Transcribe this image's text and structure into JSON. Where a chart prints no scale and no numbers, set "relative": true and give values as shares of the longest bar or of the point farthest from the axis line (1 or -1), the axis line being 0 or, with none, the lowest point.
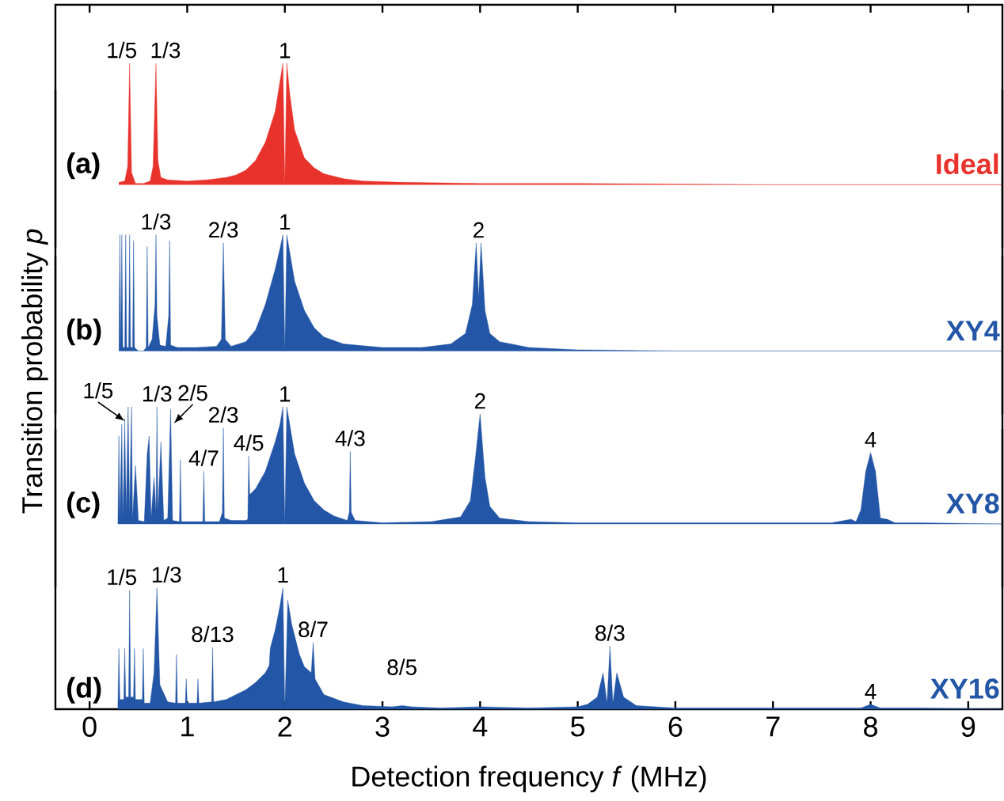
{
  "chart_data": [
    {
      "type": "area",
      "relative": true,
      "xlim": [
        -0.35,
        9.35
      ],
      "tick_labels": false,
      "series": [
        {
          "name": "Ideal",
          "color": "#e8322c",
          "x": [
            0.3,
            0.36,
            0.39,
            0.41,
            0.43,
            0.47,
            0.55,
            0.62,
            0.65,
            0.68,
            0.7,
            0.73,
            0.8,
            1.0,
            1.2,
            1.4,
            1.5,
            1.6,
            1.7,
            1.8,
            1.9,
            1.95,
            1.98,
            2.0,
            2.02,
            2.05,
            2.1,
            2.2,
            2.3,
            2.4,
            2.6,
            2.8,
            3.2,
            4.0,
            5.0,
            7.0,
            9.35
          ],
          "values": [
            0.02,
            0.03,
            0.15,
            1.0,
            0.1,
            0.01,
            0.01,
            0.03,
            0.15,
            1.0,
            0.2,
            0.06,
            0.04,
            0.03,
            0.04,
            0.06,
            0.08,
            0.12,
            0.2,
            0.35,
            0.6,
            0.85,
            1.0,
            0,
            1.0,
            0.75,
            0.45,
            0.22,
            0.14,
            0.09,
            0.05,
            0.03,
            0.02,
            0.01,
            0.01,
            0,
            0
          ]
        }
      ],
      "annotations": [
        "(a)",
        {
          "text": "1/5",
          "x": 0.41,
          "y": 1.0
        },
        {
          "text": "1/3",
          "x": 0.68,
          "y": 1.0
        },
        {
          "text": "1",
          "x": 2.0,
          "y": 1.0
        }
      ]
    },
    {
      "type": "area",
      "relative": true,
      "xlim": [
        -0.35,
        9.35
      ],
      "tick_labels": false,
      "series": [
        {
          "name": "XY4",
          "color": "#2356a6",
          "x": [
            0.3,
            0.31,
            0.32,
            0.33,
            0.34,
            0.36,
            0.37,
            0.38,
            0.4,
            0.41,
            0.42,
            0.44,
            0.45,
            0.46,
            0.5,
            0.55,
            0.58,
            0.59,
            0.6,
            0.64,
            0.67,
            0.68,
            0.69,
            0.72,
            0.78,
            0.81,
            0.82,
            0.83,
            0.9,
            1.1,
            1.3,
            1.35,
            1.37,
            1.39,
            1.45,
            1.6,
            1.7,
            1.8,
            1.9,
            1.95,
            1.98,
            2.0,
            2.02,
            2.05,
            2.1,
            2.2,
            2.3,
            2.4,
            2.6,
            3.0,
            3.4,
            3.7,
            3.85,
            3.92,
            3.96,
            3.985,
            4.01,
            4.05,
            4.1,
            4.2,
            4.5,
            5.0,
            6.0,
            9.35
          ],
          "values": [
            0.03,
            1.0,
            0.03,
            1.0,
            0.03,
            0.03,
            1.0,
            0.03,
            0.03,
            1.0,
            0.03,
            0.03,
            0.95,
            0.03,
            0,
            0,
            0.03,
            0.9,
            0.03,
            0.1,
            0.4,
            1.0,
            0.3,
            0.05,
            0.04,
            0.3,
            0.95,
            0.05,
            0.03,
            0.03,
            0.04,
            0.1,
            0.93,
            0.1,
            0.04,
            0.08,
            0.18,
            0.4,
            0.7,
            0.88,
            1.0,
            0,
            1.0,
            0.85,
            0.6,
            0.35,
            0.2,
            0.12,
            0.06,
            0.03,
            0.03,
            0.06,
            0.15,
            0.4,
            0.93,
            0.46,
            0.93,
            0.35,
            0.15,
            0.08,
            0.03,
            0.01,
            0,
            0
          ]
        }
      ],
      "annotations": [
        "(b)",
        {
          "text": "1/3",
          "x": 0.68,
          "y": 1.0
        },
        {
          "text": "2/3",
          "x": 1.37,
          "y": 0.93
        },
        {
          "text": "1",
          "x": 2.0,
          "y": 1.0
        },
        {
          "text": "2",
          "x": 3.985,
          "y": 0.93
        }
      ]
    },
    {
      "type": "area",
      "relative": true,
      "xlim": [
        -0.35,
        9.35
      ],
      "tick_labels": false,
      "series": [
        {
          "name": "XY8",
          "color": "#2356a6",
          "x": [
            0.29,
            0.3,
            0.31,
            0.33,
            0.34,
            0.35,
            0.36,
            0.375,
            0.395,
            0.41,
            0.42,
            0.43,
            0.44,
            0.47,
            0.5,
            0.56,
            0.59,
            0.61,
            0.63,
            0.66,
            0.68,
            0.69,
            0.7,
            0.73,
            0.76,
            0.8,
            0.83,
            0.85,
            0.92,
            0.93,
            0.94,
            1.1,
            1.16,
            1.17,
            1.18,
            1.33,
            1.36,
            1.37,
            1.38,
            1.45,
            1.6,
            1.62,
            1.63,
            1.64,
            1.7,
            1.8,
            1.9,
            1.95,
            1.98,
            2.0,
            2.02,
            2.05,
            2.1,
            2.2,
            2.3,
            2.4,
            2.5,
            2.64,
            2.66,
            2.67,
            2.68,
            2.72,
            3.0,
            3.5,
            3.8,
            3.9,
            3.95,
            4.0,
            4.05,
            4.1,
            4.2,
            4.5,
            5.0,
            7.6,
            7.8,
            7.85,
            7.9,
            7.95,
            8.0,
            8.05,
            8.1,
            8.17,
            8.25,
            8.5,
            9.35
          ],
          "values": [
            0.02,
            0.75,
            0.05,
            0.85,
            0.05,
            0.4,
            0.9,
            0.1,
            1.0,
            0.1,
            0.6,
            1.0,
            0.05,
            0.5,
            0.03,
            0.02,
            0.6,
            0.75,
            0.05,
            0.4,
            0.1,
            1.0,
            0.1,
            0.7,
            0.03,
            0.05,
            0.98,
            0.03,
            0.02,
            0.55,
            0.02,
            0.02,
            0.02,
            0.45,
            0.02,
            0.02,
            0.1,
            0.82,
            0.05,
            0.03,
            0.03,
            0.04,
            0.58,
            0.25,
            0.3,
            0.45,
            0.7,
            0.85,
            1.0,
            0,
            1.0,
            0.85,
            0.6,
            0.35,
            0.2,
            0.12,
            0.07,
            0.03,
            0.1,
            0.62,
            0.1,
            0.03,
            0.01,
            0.02,
            0.06,
            0.2,
            0.55,
            0.94,
            0.4,
            0.15,
            0.05,
            0.02,
            0.01,
            0.01,
            0.04,
            0.02,
            0.12,
            0.45,
            0.61,
            0.45,
            0.05,
            0.04,
            0.01,
            0.01,
            0
          ]
        }
      ],
      "annotations": [
        "(c)",
        {
          "text": "1/5",
          "x": 0.395,
          "y": 1.0
        },
        {
          "text": "1/3",
          "x": 0.69,
          "y": 1.0
        },
        {
          "text": "2/5",
          "x": 0.83,
          "y": 0.98
        },
        {
          "text": "4/7",
          "x": 1.17,
          "y": 0.45
        },
        {
          "text": "2/3",
          "x": 1.37,
          "y": 0.82
        },
        {
          "text": "4/5",
          "x": 1.63,
          "y": 0.58
        },
        {
          "text": "1",
          "x": 2.0,
          "y": 1.0
        },
        {
          "text": "4/3",
          "x": 2.67,
          "y": 0.62
        },
        {
          "text": "2",
          "x": 4.0,
          "y": 0.94
        },
        {
          "text": "4",
          "x": 8.0,
          "y": 0.61
        }
      ]
    },
    {
      "type": "area",
      "relative": true,
      "xlim": [
        -0.35,
        9.35
      ],
      "xticks": [
        0,
        1,
        2,
        3,
        4,
        5,
        6,
        7,
        8,
        9
      ],
      "tick_labels": "x",
      "xlabel": "Detection frequency *f* (MHz)",
      "ylabel": "Transition probability *p*",
      "series": [
        {
          "name": "XY16",
          "color": "#2356a6",
          "x": [
            0.29,
            0.3,
            0.31,
            0.35,
            0.36,
            0.37,
            0.4,
            0.41,
            0.42,
            0.45,
            0.46,
            0.47,
            0.54,
            0.55,
            0.56,
            0.62,
            0.66,
            0.69,
            0.72,
            0.8,
            0.88,
            0.89,
            0.9,
            0.98,
            0.99,
            1.0,
            1.1,
            1.11,
            1.12,
            1.25,
            1.26,
            1.27,
            1.4,
            1.5,
            1.6,
            1.7,
            1.8,
            1.84,
            1.85,
            1.9,
            1.95,
            1.98,
            2.0,
            2.03,
            2.07,
            2.15,
            2.2,
            2.27,
            2.29,
            2.31,
            2.4,
            2.6,
            2.8,
            3.1,
            3.2,
            3.3,
            3.6,
            4.0,
            4.5,
            5.0,
            5.1,
            5.2,
            5.26,
            5.3,
            5.33,
            5.36,
            5.4,
            5.47,
            5.6,
            6.0,
            7.9,
            8.0,
            8.1,
            8.5,
            9.35
          ],
          "values": [
            0.05,
            0.5,
            0.08,
            0.08,
            0.5,
            0.1,
            0.1,
            0.98,
            0.1,
            0.1,
            0.5,
            0.08,
            0.08,
            0.5,
            0.05,
            0.05,
            0.3,
            1.0,
            0.2,
            0.06,
            0.05,
            0.45,
            0.05,
            0.05,
            0.25,
            0.05,
            0.05,
            0.25,
            0.05,
            0.06,
            0.51,
            0.06,
            0.08,
            0.12,
            0.16,
            0.22,
            0.3,
            0.36,
            0.5,
            0.65,
            0.85,
            1.0,
            0,
            0.9,
            0.7,
            0.45,
            0.35,
            0.3,
            0.55,
            0.25,
            0.12,
            0.06,
            0.03,
            0.02,
            0.03,
            0.02,
            0.01,
            0.02,
            0.01,
            0.02,
            0.04,
            0.1,
            0.3,
            0.05,
            0.52,
            0.05,
            0.3,
            0.1,
            0.03,
            0.01,
            0.01,
            0.04,
            0.01,
            0.01,
            0
          ]
        }
      ],
      "annotations": [
        "(d)",
        {
          "text": "1/5",
          "x": 0.41,
          "y": 0.98
        },
        {
          "text": "1/3",
          "x": 0.69,
          "y": 1.0
        },
        {
          "text": "8/13",
          "x": 1.26,
          "y": 0.51
        },
        {
          "text": "1",
          "x": 1.98,
          "y": 1.0
        },
        {
          "text": "8/7",
          "x": 2.29,
          "y": 0.55
        },
        {
          "text": "8/5",
          "x": 3.2,
          "y": 0.03
        },
        {
          "text": "8/3",
          "x": 5.33,
          "y": 0.52
        },
        {
          "text": "4",
          "x": 8.0,
          "y": 0.04
        }
      ]
    }
  ]
}
